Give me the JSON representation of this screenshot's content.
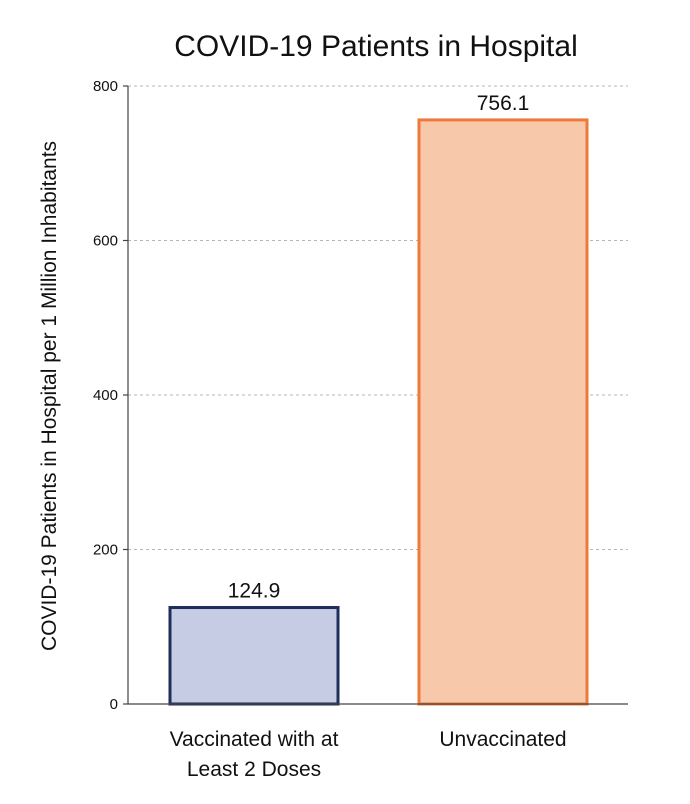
{
  "chart_data": {
    "type": "bar",
    "title": "COVID-19 Patients in Hospital",
    "xlabel": "",
    "ylabel": "COVID-19 Patients in Hospital per 1 Million Inhabitants",
    "ylim": [
      0,
      800
    ],
    "yticks": [
      0,
      200,
      400,
      600,
      800
    ],
    "grid": true,
    "categories": [
      [
        "Vaccinated with at",
        "Least 2 Doses"
      ],
      [
        "Unvaccinated"
      ]
    ],
    "values": [
      124.9,
      756.1
    ],
    "value_labels": [
      "124.9",
      "756.1"
    ],
    "colors": {
      "fill": [
        "#c5cce4",
        "#f7c8aa"
      ],
      "stroke": [
        "#1f2e5a",
        "#ee7a3a"
      ]
    }
  }
}
